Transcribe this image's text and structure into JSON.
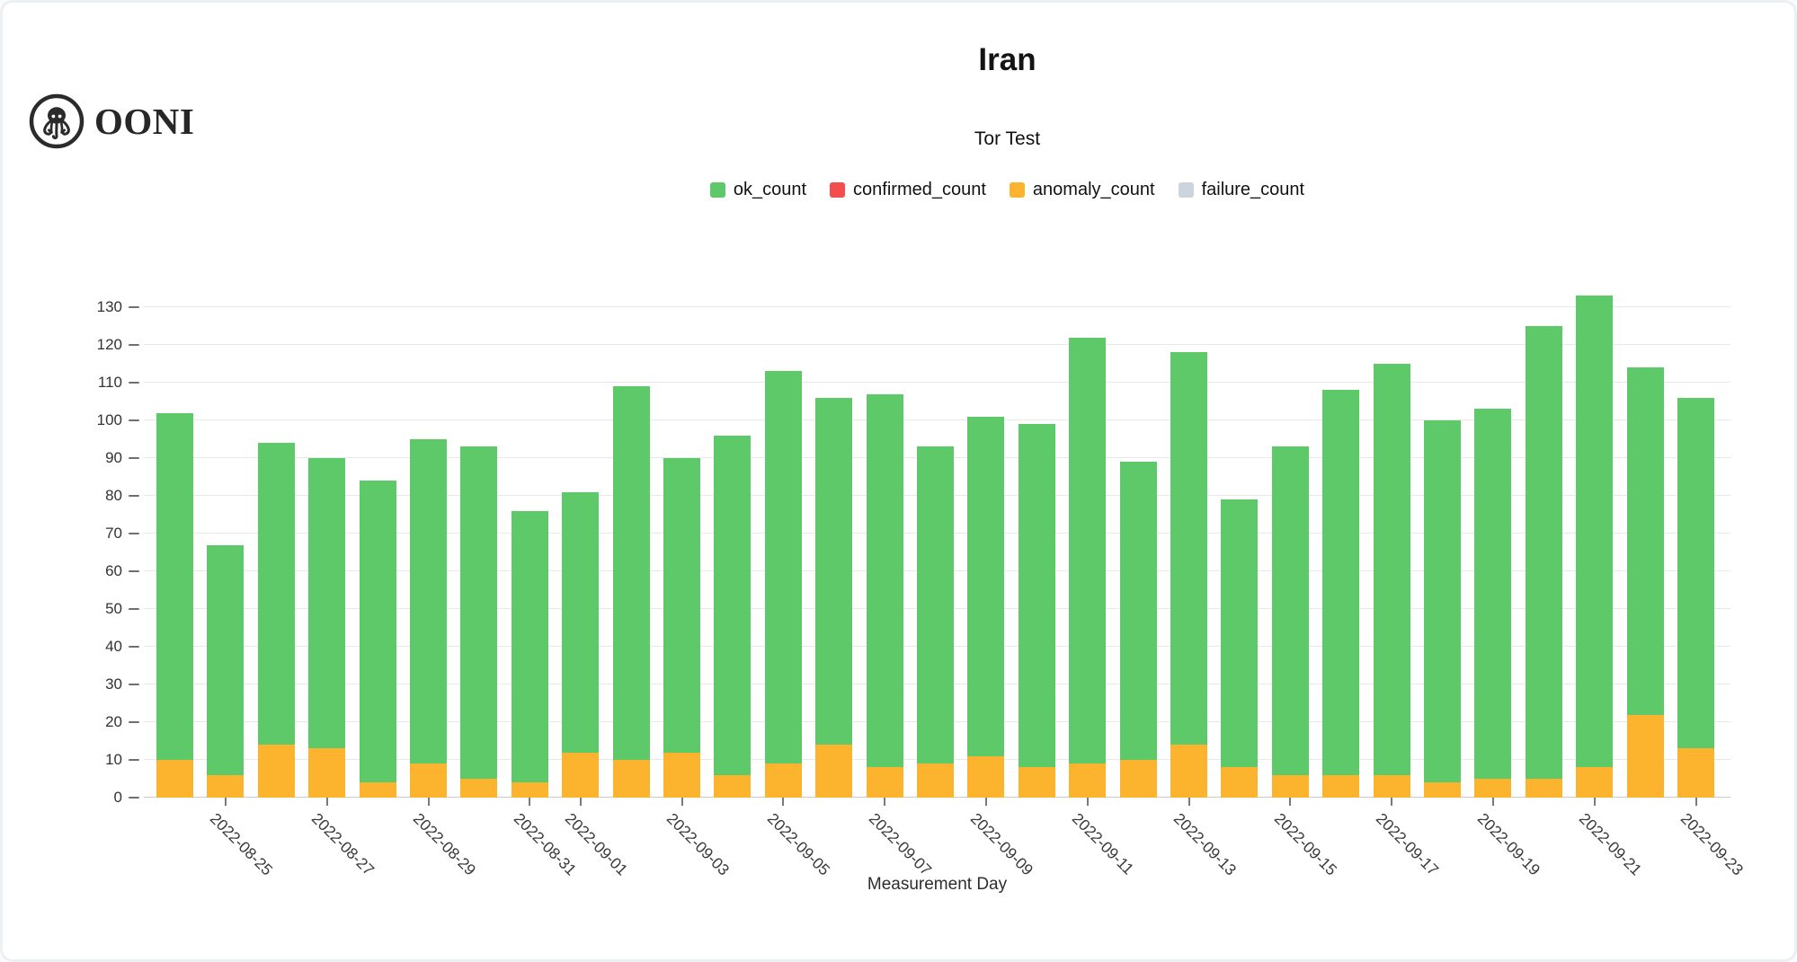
{
  "brand": {
    "wordmark": "OONI"
  },
  "header": {
    "title": "Iran",
    "subtitle": "Tor Test"
  },
  "legend": [
    {
      "label": "ok_count",
      "color": "#5ec968"
    },
    {
      "label": "confirmed_count",
      "color": "#f24e4e"
    },
    {
      "label": "anomaly_count",
      "color": "#fcb32d"
    },
    {
      "label": "failure_count",
      "color": "#ccd4dd"
    }
  ],
  "chart_data": {
    "type": "bar",
    "stacked": true,
    "title": "Iran",
    "subtitle": "Tor Test",
    "xlabel": "Measurement Day",
    "ylabel": "",
    "ylim": [
      0,
      135
    ],
    "grid": "horizontal",
    "legend_position": "top",
    "y_ticks": [
      0,
      10,
      20,
      30,
      40,
      50,
      60,
      70,
      80,
      90,
      100,
      110,
      120,
      130
    ],
    "categories": [
      "2022-08-24",
      "2022-08-25",
      "2022-08-26",
      "2022-08-27",
      "2022-08-28",
      "2022-08-29",
      "2022-08-30",
      "2022-08-31",
      "2022-09-01",
      "2022-09-02",
      "2022-09-03",
      "2022-09-04",
      "2022-09-05",
      "2022-09-06",
      "2022-09-07",
      "2022-09-08",
      "2022-09-09",
      "2022-09-10",
      "2022-09-11",
      "2022-09-12",
      "2022-09-13",
      "2022-09-14",
      "2022-09-15",
      "2022-09-16",
      "2022-09-17",
      "2022-09-18",
      "2022-09-19",
      "2022-09-20",
      "2022-09-21",
      "2022-09-22",
      "2022-09-23"
    ],
    "labeled_ticks": [
      "2022-08-25",
      "2022-08-27",
      "2022-08-29",
      "2022-08-31",
      "2022-09-01",
      "2022-09-03",
      "2022-09-05",
      "2022-09-07",
      "2022-09-09",
      "2022-09-11",
      "2022-09-13",
      "2022-09-15",
      "2022-09-17",
      "2022-09-19",
      "2022-09-21",
      "2022-09-23"
    ],
    "stack_bottom_to_top": [
      "anomaly_count",
      "confirmed_count",
      "failure_count",
      "ok_count"
    ],
    "series": [
      {
        "name": "ok_count",
        "color": "#5ec968",
        "values": [
          92,
          61,
          80,
          77,
          80,
          86,
          88,
          72,
          69,
          99,
          78,
          90,
          104,
          92,
          99,
          84,
          90,
          91,
          113,
          79,
          104,
          71,
          87,
          102,
          109,
          96,
          98,
          120,
          125,
          92,
          93
        ]
      },
      {
        "name": "confirmed_count",
        "color": "#f24e4e",
        "values": [
          0,
          0,
          0,
          0,
          0,
          0,
          0,
          0,
          0,
          0,
          0,
          0,
          0,
          0,
          0,
          0,
          0,
          0,
          0,
          0,
          0,
          0,
          0,
          0,
          0,
          0,
          0,
          0,
          0,
          0,
          0
        ]
      },
      {
        "name": "anomaly_count",
        "color": "#fcb32d",
        "values": [
          10,
          6,
          14,
          13,
          4,
          9,
          5,
          4,
          12,
          10,
          12,
          6,
          9,
          14,
          8,
          9,
          11,
          8,
          9,
          10,
          14,
          8,
          6,
          6,
          6,
          4,
          5,
          5,
          8,
          22,
          13
        ]
      },
      {
        "name": "failure_count",
        "color": "#ccd4dd",
        "values": [
          0,
          0,
          0,
          0,
          0,
          0,
          0,
          0,
          0,
          0,
          0,
          0,
          0,
          0,
          0,
          0,
          0,
          0,
          0,
          0,
          0,
          0,
          0,
          0,
          0,
          0,
          0,
          0,
          0,
          0,
          0
        ]
      }
    ],
    "totals": [
      102,
      67,
      94,
      90,
      84,
      95,
      93,
      76,
      81,
      109,
      90,
      96,
      113,
      106,
      107,
      93,
      101,
      99,
      122,
      89,
      118,
      79,
      93,
      108,
      115,
      100,
      103,
      125,
      133,
      114,
      106
    ]
  }
}
